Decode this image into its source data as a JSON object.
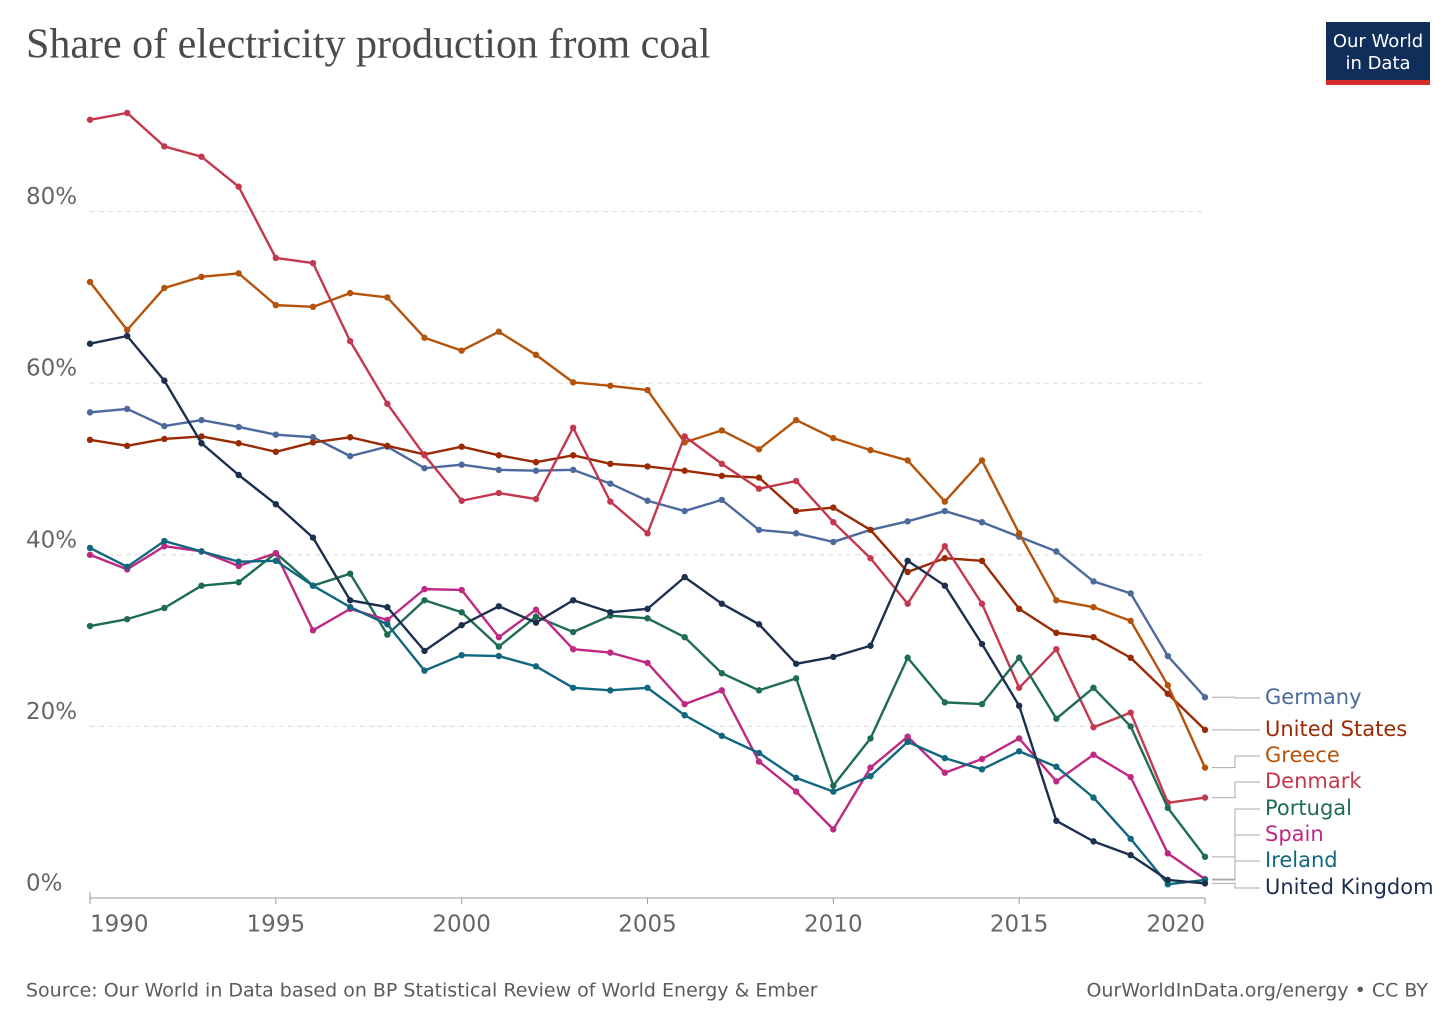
{
  "chart_data": {
    "type": "line",
    "title": "Share of electricity production from coal",
    "logo": [
      "Our World",
      "in Data"
    ],
    "source": "Source: Our World in Data based on BP Statistical Review of World Energy & Ember",
    "credit": "OurWorldInData.org/energy • CC BY",
    "x": [
      1990,
      1991,
      1992,
      1993,
      1994,
      1995,
      1996,
      1997,
      1998,
      1999,
      2000,
      2001,
      2002,
      2003,
      2004,
      2005,
      2006,
      2007,
      2008,
      2009,
      2010,
      2011,
      2012,
      2013,
      2014,
      2015,
      2016,
      2017,
      2018,
      2019,
      2020
    ],
    "xlim": [
      1990,
      2020
    ],
    "xticks": [
      1990,
      1995,
      2000,
      2005,
      2010,
      2015,
      2020
    ],
    "ylim": [
      0,
      93
    ],
    "yticks": [
      {
        "value": 0,
        "label": "0%"
      },
      {
        "value": 20,
        "label": "20%"
      },
      {
        "value": 40,
        "label": "40%"
      },
      {
        "value": 60,
        "label": "60%"
      },
      {
        "value": 80,
        "label": "80%"
      }
    ],
    "grid": true,
    "series": [
      {
        "name": "Germany",
        "color": "#4c6a9c",
        "values": [
          56.6,
          57.0,
          55.0,
          55.7,
          54.9,
          54.0,
          53.7,
          51.5,
          52.6,
          50.1,
          50.5,
          49.9,
          49.8,
          49.9,
          48.3,
          46.3,
          45.1,
          46.4,
          42.9,
          42.5,
          41.5,
          42.9,
          43.9,
          45.1,
          43.8,
          42.1,
          40.4,
          36.9,
          35.5,
          28.2,
          23.4
        ]
      },
      {
        "name": "United States",
        "color": "#9a2a04",
        "values": [
          53.4,
          52.7,
          53.5,
          53.8,
          53.0,
          52.0,
          53.1,
          53.7,
          52.7,
          51.7,
          52.6,
          51.6,
          50.8,
          51.6,
          50.6,
          50.3,
          49.8,
          49.2,
          49.0,
          45.1,
          45.5,
          42.9,
          38.0,
          39.6,
          39.3,
          33.7,
          30.9,
          30.4,
          28.0,
          23.8,
          19.6
        ]
      },
      {
        "name": "Greece",
        "color": "#b4530b",
        "values": [
          71.8,
          66.2,
          71.1,
          72.4,
          72.8,
          69.1,
          68.9,
          70.5,
          70.0,
          65.3,
          63.8,
          66.0,
          63.3,
          60.1,
          59.7,
          59.2,
          53.1,
          54.5,
          52.3,
          55.7,
          53.6,
          52.2,
          51.0,
          46.2,
          51.0,
          42.5,
          34.7,
          33.9,
          32.3,
          24.8,
          15.2
        ]
      },
      {
        "name": "Denmark",
        "color": "#c4384f",
        "values": [
          90.7,
          91.5,
          87.6,
          86.4,
          82.9,
          74.6,
          74.0,
          64.9,
          57.6,
          51.6,
          46.3,
          47.2,
          46.5,
          54.8,
          46.2,
          42.5,
          53.8,
          50.6,
          47.7,
          48.6,
          43.8,
          39.6,
          34.3,
          41.0,
          34.3,
          24.5,
          29.0,
          19.9,
          21.6,
          11.1,
          11.7
        ]
      },
      {
        "name": "Portugal",
        "color": "#1e6b56",
        "values": [
          31.7,
          32.5,
          33.8,
          36.4,
          36.8,
          40.2,
          36.4,
          37.8,
          30.7,
          34.7,
          33.3,
          29.3,
          32.8,
          31.0,
          32.9,
          32.6,
          30.4,
          26.2,
          24.2,
          25.6,
          13.1,
          18.6,
          28.0,
          22.8,
          22.6,
          28.0,
          20.9,
          24.5,
          20.0,
          10.5,
          4.8
        ]
      },
      {
        "name": "Spain",
        "color": "#be2983",
        "values": [
          40.0,
          38.3,
          41.0,
          40.4,
          38.7,
          40.2,
          31.2,
          33.7,
          32.4,
          36.0,
          35.9,
          30.4,
          33.6,
          29.0,
          28.6,
          27.4,
          22.6,
          24.2,
          15.9,
          12.4,
          8.0,
          15.2,
          18.8,
          14.6,
          16.2,
          18.6,
          13.6,
          16.7,
          14.1,
          5.2,
          2.2
        ]
      },
      {
        "name": "Ireland",
        "color": "#10677f",
        "values": [
          40.8,
          38.6,
          41.6,
          40.4,
          39.2,
          39.3,
          36.4,
          33.9,
          31.9,
          26.5,
          28.3,
          28.2,
          27.0,
          24.5,
          24.2,
          24.5,
          21.3,
          18.9,
          16.9,
          14.0,
          12.4,
          14.2,
          18.2,
          16.3,
          15.0,
          17.1,
          15.3,
          11.7,
          6.9,
          1.6,
          2.1
        ]
      },
      {
        "name": "United Kingdom",
        "color": "#1d2f4f",
        "values": [
          64.6,
          65.5,
          60.3,
          53.0,
          49.3,
          45.9,
          42.0,
          34.7,
          33.9,
          28.8,
          31.8,
          34.0,
          32.1,
          34.7,
          33.3,
          33.7,
          37.4,
          34.3,
          31.9,
          27.3,
          28.1,
          29.4,
          39.3,
          36.4,
          29.6,
          22.4,
          9.0,
          6.6,
          5.0,
          2.1,
          1.7
        ]
      }
    ]
  }
}
